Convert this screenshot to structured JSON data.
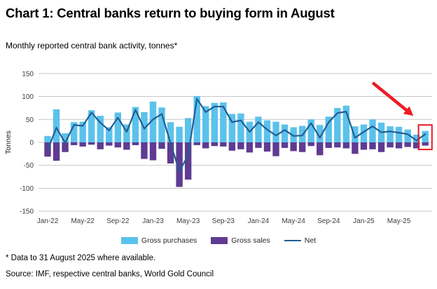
{
  "header": {
    "title": "Chart 1: Central banks return to buying form in August",
    "subtitle": "Monthly reported central bank activity, tonnes*"
  },
  "chart_data": {
    "type": "bar",
    "title": "Chart 1: Central banks return to buying form in August",
    "subtitle": "Monthly reported central bank activity, tonnes*",
    "ylabel": "Tonnes",
    "xlabel": "",
    "ylim": [
      -150,
      150
    ],
    "ytick_step": 50,
    "grid": true,
    "legend_position": "bottom",
    "categories": [
      "Jan-22",
      "Feb-22",
      "Mar-22",
      "Apr-22",
      "May-22",
      "Jun-22",
      "Jul-22",
      "Aug-22",
      "Sep-22",
      "Oct-22",
      "Nov-22",
      "Dec-22",
      "Jan-23",
      "Feb-23",
      "Mar-23",
      "Apr-23",
      "May-23",
      "Jun-23",
      "Jul-23",
      "Aug-23",
      "Sep-23",
      "Oct-23",
      "Nov-23",
      "Dec-23",
      "Jan-24",
      "Feb-24",
      "Mar-24",
      "Apr-24",
      "May-24",
      "Jun-24",
      "Jul-24",
      "Aug-24",
      "Sep-24",
      "Oct-24",
      "Nov-24",
      "Dec-24",
      "Jan-25",
      "Feb-25",
      "Mar-25",
      "Apr-25",
      "May-25",
      "Jun-25",
      "Jul-25",
      "Aug-25"
    ],
    "xticks": [
      "Jan-22",
      "May-22",
      "Sep-22",
      "Jan-23",
      "May-23",
      "Sep-23",
      "Jan-24",
      "May-24",
      "Sep-24",
      "Jan-25",
      "May-25"
    ],
    "series": [
      {
        "name": "Gross purchases",
        "type": "bar",
        "color": "#5BC2EB",
        "values": [
          14,
          72,
          20,
          44,
          45,
          70,
          58,
          33,
          65,
          39,
          77,
          66,
          89,
          76,
          44,
          34,
          53,
          101,
          79,
          86,
          87,
          62,
          63,
          45,
          56,
          48,
          45,
          39,
          33,
          36,
          50,
          38,
          56,
          75,
          80,
          35,
          39,
          50,
          43,
          35,
          34,
          28,
          17,
          25
        ]
      },
      {
        "name": "Gross sales",
        "type": "bar",
        "color": "#5F3B91",
        "values": [
          -31,
          -40,
          -21,
          -6,
          -9,
          -5,
          -15,
          -7,
          -11,
          -16,
          -6,
          -36,
          -39,
          -14,
          -46,
          -97,
          -81,
          -6,
          -13,
          -8,
          -9,
          -18,
          -15,
          -22,
          -12,
          -20,
          -30,
          -12,
          -19,
          -21,
          -8,
          -28,
          -12,
          -11,
          -13,
          -25,
          -16,
          -15,
          -21,
          -11,
          -13,
          -10,
          -13,
          -7
        ]
      },
      {
        "name": "Net",
        "type": "line",
        "color": "#215E93",
        "values": [
          -17,
          32,
          -1,
          38,
          36,
          65,
          43,
          26,
          54,
          23,
          71,
          30,
          50,
          62,
          -2,
          -63,
          -28,
          95,
          66,
          78,
          78,
          44,
          48,
          23,
          44,
          28,
          15,
          27,
          14,
          15,
          42,
          10,
          44,
          64,
          67,
          10,
          23,
          35,
          22,
          24,
          21,
          18,
          4,
          18
        ]
      }
    ],
    "annotations": {
      "color": "#EC1C24",
      "arrow_target_month": "Aug-25",
      "highlight_month": "Aug-25"
    }
  },
  "footnotes": {
    "note": "* Data to 31 August 2025 where available.",
    "source": "Source: IMF, respective central banks, World Gold Council"
  },
  "colors": {
    "purchases": "#5BC2EB",
    "sales": "#5F3B91",
    "net": "#215E93",
    "gridline": "#c7c7c7",
    "tick_text": "#3d3d3d",
    "annotation_red": "#EC1C24"
  }
}
